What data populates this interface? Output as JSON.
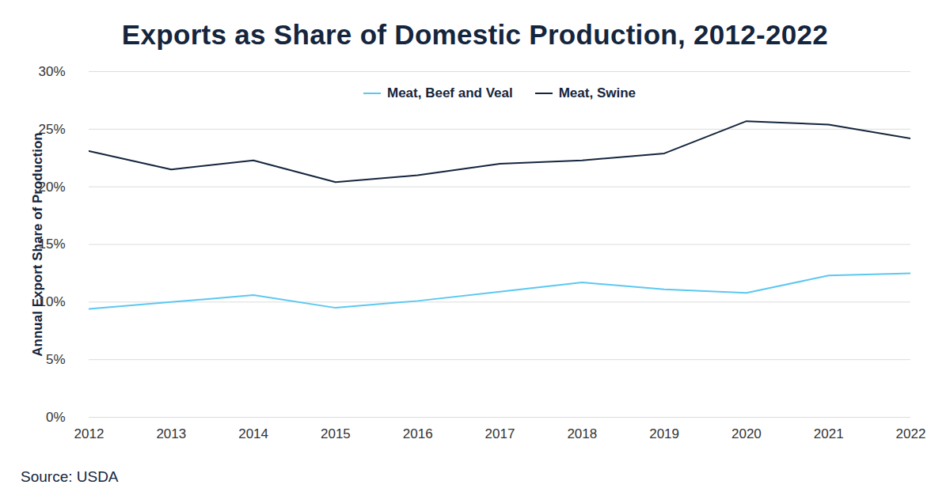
{
  "chart_data": {
    "type": "line",
    "title": "Exports as Share of Domestic Production, 2012-2022",
    "ylabel": "Annual Export Share of Production",
    "source": "Source: USDA",
    "x": [
      2012,
      2013,
      2014,
      2015,
      2016,
      2017,
      2018,
      2019,
      2020,
      2021,
      2022
    ],
    "series": [
      {
        "name": "Meat, Beef and Veal",
        "color": "#5bc8f0",
        "values": [
          9.4,
          10.0,
          10.6,
          9.5,
          10.1,
          10.9,
          11.7,
          11.1,
          10.8,
          12.3,
          12.5
        ]
      },
      {
        "name": "Meat, Swine",
        "color": "#14253d",
        "values": [
          23.1,
          21.5,
          22.3,
          20.4,
          21.0,
          22.0,
          22.3,
          22.9,
          25.7,
          25.4,
          24.2
        ]
      }
    ],
    "xlim": [
      2012,
      2022
    ],
    "xticks": [
      2012,
      2013,
      2014,
      2015,
      2016,
      2017,
      2018,
      2019,
      2020,
      2021,
      2022
    ],
    "ylim": [
      0,
      30
    ],
    "yticks": [
      {
        "value": 0,
        "label": "0%"
      },
      {
        "value": 5,
        "label": "5%"
      },
      {
        "value": 10,
        "label": "10%"
      },
      {
        "value": 15,
        "label": "15%"
      },
      {
        "value": 20,
        "label": "20%"
      },
      {
        "value": 25,
        "label": "25%"
      },
      {
        "value": 30,
        "label": "30%"
      }
    ],
    "grid": true,
    "legend": "top"
  }
}
